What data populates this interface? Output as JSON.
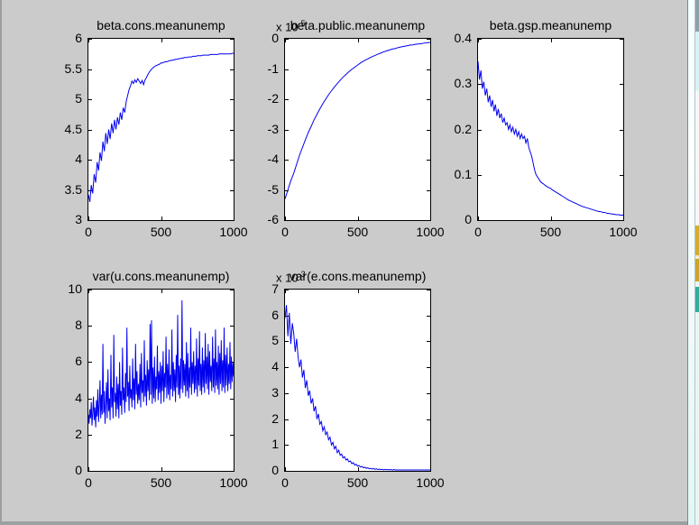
{
  "colors": {
    "figure_background": "#cbcbcb",
    "trace_line": "#0000f0",
    "axes_background": "#ffffff",
    "axes_text": "#000000",
    "window_border": "#9aa0a0"
  },
  "chart_data": [
    {
      "type": "line",
      "title": "beta.cons.meanunemp",
      "xlabel": "",
      "ylabel": "",
      "xlim": [
        0,
        1000
      ],
      "ylim": [
        3,
        6
      ],
      "xticks": [
        0,
        500,
        1000
      ],
      "xtick_labels": [
        "0",
        "500",
        "1000"
      ],
      "yticks": [
        3,
        3.5,
        4,
        4.5,
        5,
        5.5,
        6
      ],
      "ytick_labels": [
        "3",
        "3.5",
        "4",
        "4.5",
        "5",
        "5.5",
        "6"
      ],
      "exponent_prefix": null,
      "exponent": null,
      "x_start": 0,
      "x_step": 10,
      "y": [
        3.42,
        3.3,
        3.58,
        3.44,
        3.76,
        3.62,
        3.96,
        3.82,
        4.12,
        3.98,
        4.3,
        4.14,
        4.44,
        4.26,
        4.5,
        4.34,
        4.6,
        4.44,
        4.66,
        4.5,
        4.7,
        4.58,
        4.78,
        4.66,
        4.86,
        4.78,
        4.96,
        5.06,
        5.16,
        5.22,
        5.3,
        5.26,
        5.32,
        5.28,
        5.34,
        5.3,
        5.26,
        5.31,
        5.24,
        5.32,
        5.36,
        5.41,
        5.45,
        5.48,
        5.51,
        5.53,
        5.55,
        5.56,
        5.57,
        5.58,
        5.6,
        5.6,
        5.61,
        5.62,
        5.62,
        5.63,
        5.64,
        5.64,
        5.65,
        5.65,
        5.66,
        5.66,
        5.67,
        5.67,
        5.68,
        5.68,
        5.69,
        5.69,
        5.69,
        5.7,
        5.7,
        5.7,
        5.71,
        5.71,
        5.71,
        5.72,
        5.72,
        5.72,
        5.72,
        5.73,
        5.73,
        5.73,
        5.73,
        5.73,
        5.74,
        5.74,
        5.74,
        5.74,
        5.74,
        5.74,
        5.75,
        5.75,
        5.75,
        5.75,
        5.75,
        5.75,
        5.75,
        5.75,
        5.75,
        5.76,
        5.76
      ]
    },
    {
      "type": "line",
      "title": "beta.public.meanunemp",
      "xlabel": "",
      "ylabel": "",
      "xlim": [
        0,
        1000
      ],
      "ylim": [
        -6,
        0
      ],
      "xticks": [
        0,
        500,
        1000
      ],
      "xtick_labels": [
        "0",
        "500",
        "1000"
      ],
      "yticks": [
        -6,
        -5,
        -4,
        -3,
        -2,
        -1,
        0
      ],
      "ytick_labels": [
        "-6",
        "-5",
        "-4",
        "-3",
        "-2",
        "-1",
        "0"
      ],
      "exponent_prefix": "x 10",
      "exponent": "-5",
      "x_start": 0,
      "x_step": 20,
      "y": [
        -5.3,
        -5.0,
        -4.7,
        -4.45,
        -4.15,
        -3.85,
        -3.6,
        -3.35,
        -3.1,
        -2.9,
        -2.68,
        -2.5,
        -2.32,
        -2.15,
        -2.0,
        -1.85,
        -1.72,
        -1.6,
        -1.48,
        -1.37,
        -1.27,
        -1.18,
        -1.09,
        -1.01,
        -0.94,
        -0.87,
        -0.8,
        -0.74,
        -0.69,
        -0.64,
        -0.59,
        -0.55,
        -0.51,
        -0.47,
        -0.43,
        -0.4,
        -0.37,
        -0.34,
        -0.32,
        -0.29,
        -0.27,
        -0.25,
        -0.23,
        -0.21,
        -0.2,
        -0.18,
        -0.17,
        -0.16,
        -0.14,
        -0.13,
        -0.12
      ]
    },
    {
      "type": "line",
      "title": "beta.gsp.meanunemp",
      "xlabel": "",
      "ylabel": "",
      "xlim": [
        0,
        1000
      ],
      "ylim": [
        0,
        0.4
      ],
      "xticks": [
        0,
        500,
        1000
      ],
      "xtick_labels": [
        "0",
        "500",
        "1000"
      ],
      "yticks": [
        0,
        0.1,
        0.2,
        0.3,
        0.4
      ],
      "ytick_labels": [
        "0",
        "0.1",
        "0.2",
        "0.3",
        "0.4"
      ],
      "exponent_prefix": null,
      "exponent": null,
      "x_start": 0,
      "x_step": 10,
      "y": [
        0.35,
        0.31,
        0.33,
        0.29,
        0.305,
        0.275,
        0.29,
        0.26,
        0.275,
        0.25,
        0.265,
        0.24,
        0.255,
        0.23,
        0.245,
        0.225,
        0.235,
        0.215,
        0.225,
        0.21,
        0.215,
        0.2,
        0.21,
        0.195,
        0.205,
        0.19,
        0.2,
        0.185,
        0.195,
        0.18,
        0.19,
        0.18,
        0.185,
        0.17,
        0.18,
        0.16,
        0.15,
        0.14,
        0.125,
        0.11,
        0.1,
        0.095,
        0.09,
        0.085,
        0.082,
        0.08,
        0.077,
        0.075,
        0.073,
        0.071,
        0.07,
        0.067,
        0.065,
        0.063,
        0.061,
        0.059,
        0.057,
        0.055,
        0.053,
        0.051,
        0.049,
        0.047,
        0.045,
        0.043,
        0.042,
        0.04,
        0.039,
        0.037,
        0.036,
        0.034,
        0.033,
        0.031,
        0.03,
        0.029,
        0.028,
        0.027,
        0.026,
        0.025,
        0.024,
        0.023,
        0.022,
        0.021,
        0.02,
        0.019,
        0.019,
        0.018,
        0.017,
        0.017,
        0.016,
        0.015,
        0.015,
        0.014,
        0.014,
        0.013,
        0.013,
        0.012,
        0.012,
        0.012,
        0.011,
        0.011,
        0.011
      ]
    },
    {
      "type": "line",
      "title": "var(u.cons.meanunemp)",
      "xlabel": "",
      "ylabel": "",
      "xlim": [
        0,
        1000
      ],
      "ylim": [
        0,
        10
      ],
      "xticks": [
        0,
        500,
        1000
      ],
      "xtick_labels": [
        "0",
        "500",
        "1000"
      ],
      "yticks": [
        0,
        2,
        4,
        6,
        8,
        10
      ],
      "ytick_labels": [
        "0",
        "2",
        "4",
        "6",
        "8",
        "10"
      ],
      "exponent_prefix": null,
      "exponent": null,
      "x_start": 0,
      "x_step": 5,
      "y": [
        3.1,
        2.6,
        3.4,
        2.9,
        3.8,
        2.5,
        3.2,
        4.1,
        2.8,
        3.5,
        2.4,
        3.9,
        3.0,
        4.5,
        2.7,
        3.6,
        5.0,
        2.9,
        4.2,
        3.1,
        7.0,
        3.2,
        4.4,
        2.6,
        3.8,
        4.9,
        2.9,
        5.6,
        3.3,
        4.0,
        2.8,
        6.4,
        3.5,
        4.6,
        2.9,
        7.5,
        3.8,
        4.3,
        3.0,
        5.2,
        3.4,
        4.8,
        2.9,
        6.0,
        3.6,
        4.4,
        3.1,
        6.8,
        3.9,
        4.6,
        3.2,
        5.4,
        3.8,
        7.9,
        4.1,
        4.9,
        3.3,
        5.8,
        4.0,
        4.5,
        3.5,
        6.2,
        3.9,
        5.1,
        3.4,
        7.0,
        4.2,
        5.5,
        3.7,
        4.8,
        3.9,
        5.9,
        3.5,
        6.5,
        4.3,
        5.0,
        3.8,
        7.2,
        4.1,
        5.3,
        3.6,
        6.1,
        4.4,
        5.6,
        3.9,
        8.1,
        4.2,
        8.3,
        3.7,
        5.7,
        4.0,
        6.3,
        3.8,
        5.2,
        4.5,
        6.9,
        3.9,
        5.5,
        4.3,
        6.0,
        3.7,
        5.8,
        4.4,
        6.6,
        3.8,
        5.4,
        4.6,
        7.4,
        4.0,
        5.9,
        4.2,
        6.7,
        3.9,
        5.3,
        4.5,
        7.8,
        4.1,
        6.0,
        4.4,
        5.6,
        3.8,
        6.4,
        4.6,
        8.6,
        4.2,
        5.8,
        4.0,
        6.2,
        4.5,
        9.4,
        4.3,
        6.1,
        4.7,
        5.9,
        4.1,
        7.1,
        4.4,
        6.5,
        4.0,
        5.7,
        4.6,
        7.9,
        4.2,
        6.0,
        4.8,
        6.6,
        4.3,
        5.8,
        4.5,
        7.3,
        4.1,
        6.2,
        4.7,
        7.7,
        4.4,
        5.9,
        4.2,
        6.8,
        4.6,
        6.1,
        4.3,
        7.6,
        4.8,
        6.3,
        4.5,
        7.0,
        4.2,
        6.6,
        4.9,
        5.8,
        4.4,
        7.4,
        4.6,
        6.2,
        4.3,
        7.8,
        4.7,
        6.0,
        4.5,
        6.9,
        4.2,
        6.5,
        4.8,
        7.2,
        4.4,
        6.1,
        4.6,
        7.9,
        4.3,
        6.4,
        4.7,
        6.8,
        4.4,
        5.9,
        4.8,
        7.1,
        4.5,
        6.3,
        4.9,
        6.0,
        5.2
      ]
    },
    {
      "type": "line",
      "title": "var(e.cons.meanunemp)",
      "xlabel": "",
      "ylabel": "",
      "xlim": [
        0,
        1000
      ],
      "ylim": [
        0,
        7
      ],
      "xticks": [
        0,
        500,
        1000
      ],
      "xtick_labels": [
        "0",
        "500",
        "1000"
      ],
      "yticks": [
        0,
        1,
        2,
        3,
        4,
        5,
        6,
        7
      ],
      "ytick_labels": [
        "0",
        "1",
        "2",
        "3",
        "4",
        "5",
        "6",
        "7"
      ],
      "exponent_prefix": "x 10",
      "exponent": "-3",
      "x_start": 0,
      "x_step": 10,
      "y": [
        5.9,
        6.4,
        5.2,
        6.1,
        4.9,
        5.7,
        5.3,
        4.6,
        5.1,
        4.4,
        4.0,
        4.3,
        3.6,
        3.9,
        3.2,
        3.5,
        2.9,
        3.1,
        2.6,
        2.8,
        2.3,
        2.5,
        2.0,
        2.2,
        1.8,
        1.9,
        1.55,
        1.7,
        1.4,
        1.5,
        1.2,
        1.3,
        1.0,
        1.1,
        0.85,
        0.95,
        0.7,
        0.8,
        0.6,
        0.65,
        0.5,
        0.55,
        0.42,
        0.46,
        0.35,
        0.38,
        0.28,
        0.32,
        0.22,
        0.26,
        0.18,
        0.21,
        0.15,
        0.17,
        0.12,
        0.14,
        0.1,
        0.12,
        0.08,
        0.1,
        0.07,
        0.09,
        0.06,
        0.08,
        0.05,
        0.07,
        0.05,
        0.06,
        0.04,
        0.06,
        0.04,
        0.05,
        0.04,
        0.05,
        0.03,
        0.05,
        0.03,
        0.04,
        0.03,
        0.04,
        0.03,
        0.04,
        0.03,
        0.04,
        0.03,
        0.04,
        0.03,
        0.04,
        0.03,
        0.04,
        0.03,
        0.04,
        0.03,
        0.04,
        0.03,
        0.04,
        0.03,
        0.04,
        0.03,
        0.04,
        0.03
      ]
    }
  ]
}
